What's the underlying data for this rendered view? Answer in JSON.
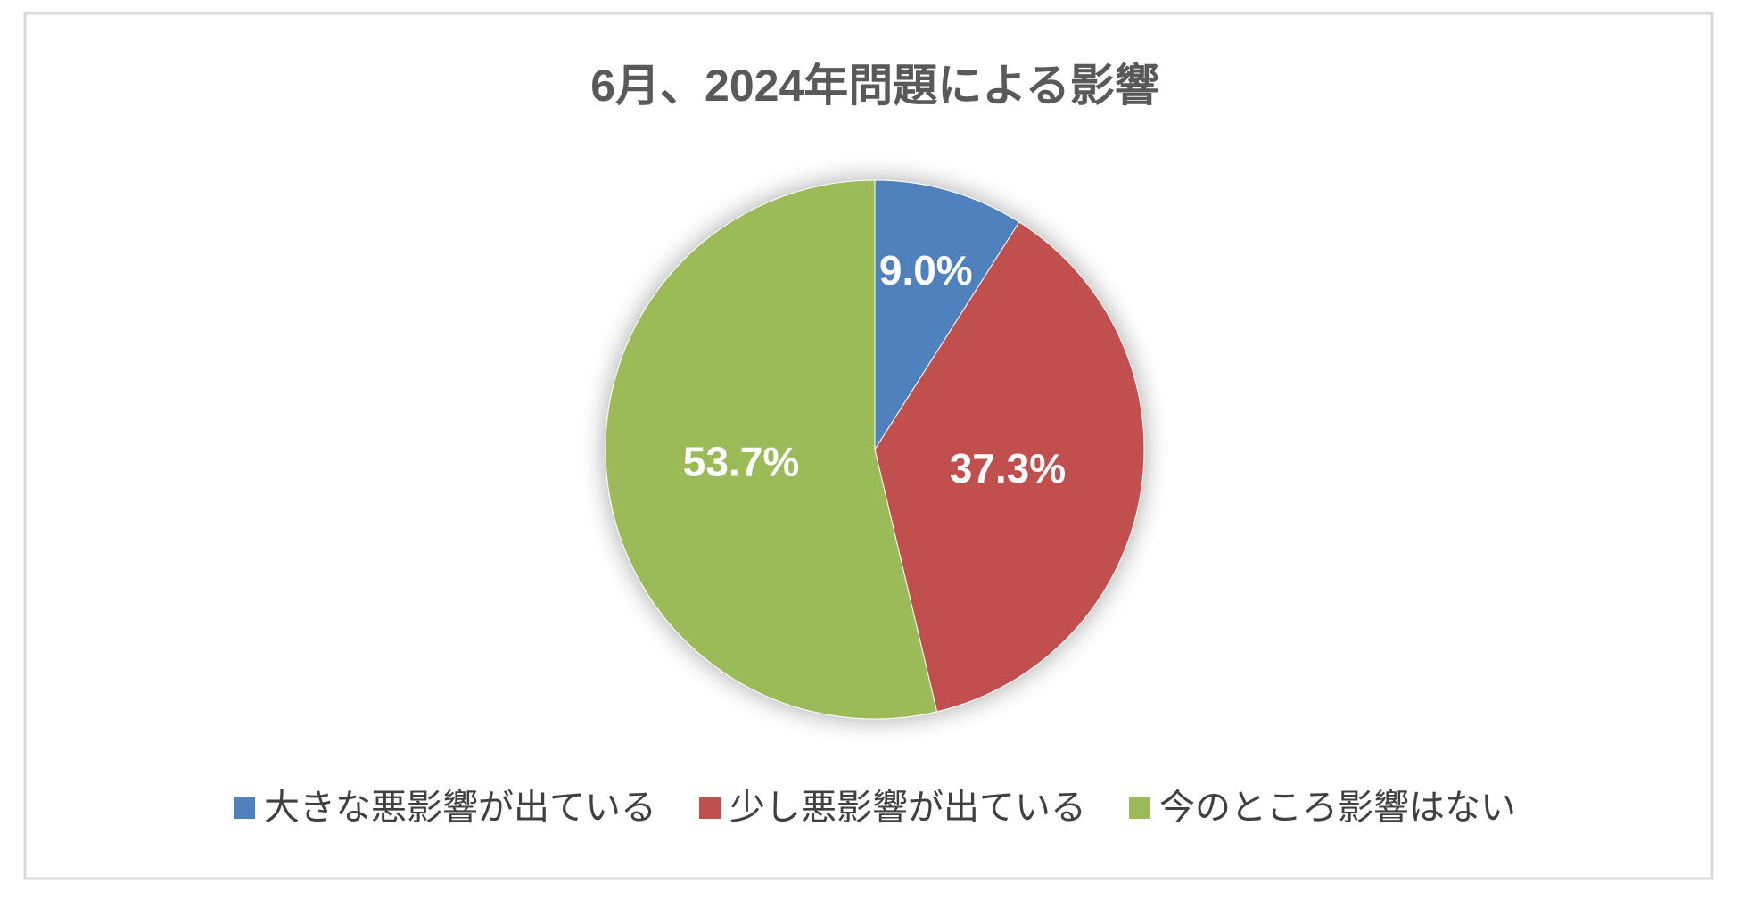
{
  "chart_data": {
    "type": "pie",
    "title": "6月、2024年問題による影響",
    "categories": [
      "大きな悪影響が出ている",
      "少し悪影響が出ている",
      "今のところ影響はない"
    ],
    "values": [
      9.0,
      37.3,
      53.7
    ],
    "value_labels": [
      "9.0%",
      "37.3%",
      "53.7%"
    ],
    "colors": [
      "#4f81bd",
      "#c0504d",
      "#9bbb59"
    ],
    "legend": "bottom"
  }
}
